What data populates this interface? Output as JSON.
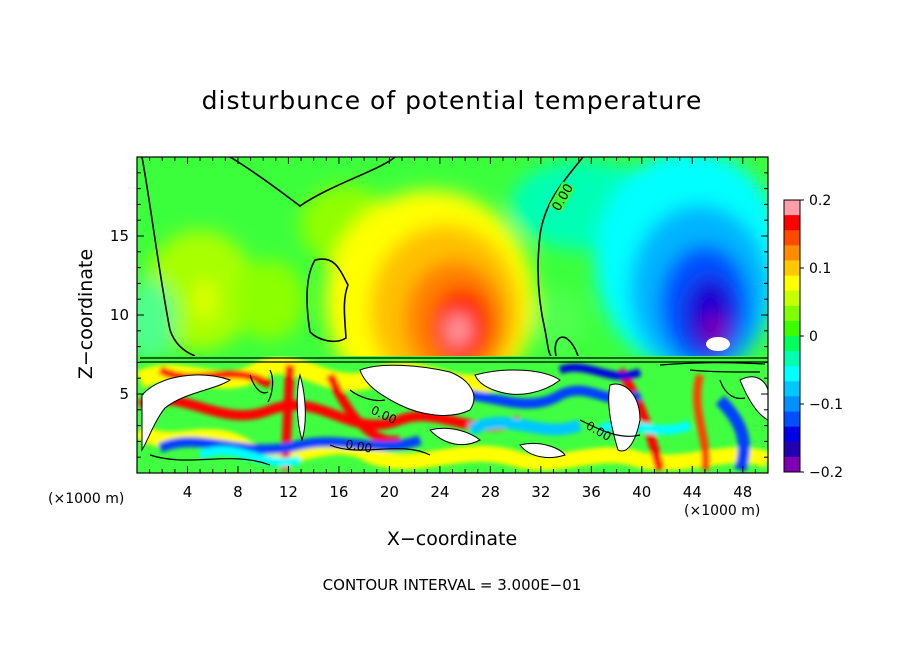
{
  "chart_data": {
    "type": "heatmap",
    "title": "disturbunce of potential temperature",
    "xlabel": "X−coordinate",
    "ylabel": "Z−coordinate",
    "x_unit_label": "(×1000 m)",
    "y_unit_label": "(×1000 m)",
    "xlim": [
      0,
      50
    ],
    "ylim": [
      0,
      20
    ],
    "x_ticks": [
      4,
      8,
      12,
      16,
      20,
      24,
      28,
      32,
      36,
      40,
      44,
      48
    ],
    "y_ticks": [
      5,
      10,
      15
    ],
    "contour_interval_text": "CONTOUR INTERVAL = 3.000E−01",
    "contour_label": "0.00",
    "colorbar": {
      "range": [
        -0.2,
        0.2
      ],
      "tick_labels": [
        "0.2",
        "0.1",
        "0",
        "−0.1",
        "−0.2"
      ],
      "tick_values": [
        0.2,
        0.1,
        0,
        -0.1,
        -0.2
      ],
      "colors": [
        "#ff9ea6",
        "#ff0000",
        "#ff4a00",
        "#ff8c00",
        "#ffc800",
        "#ffff00",
        "#c8ff00",
        "#80ff00",
        "#3cff00",
        "#00ff5a",
        "#00ffb0",
        "#00ffff",
        "#00c8ff",
        "#0090ff",
        "#0050ff",
        "#0000e6",
        "#2000b0",
        "#7f00b4"
      ]
    },
    "features": [
      {
        "kind": "warm_anomaly",
        "x": 25.5,
        "z": 10.5,
        "value": 0.18
      },
      {
        "kind": "cold_anomaly",
        "x": 45.5,
        "z": 10.0,
        "value": -0.2
      },
      {
        "kind": "turbulent_layer",
        "z_range": [
          0,
          7.3
        ]
      }
    ]
  }
}
